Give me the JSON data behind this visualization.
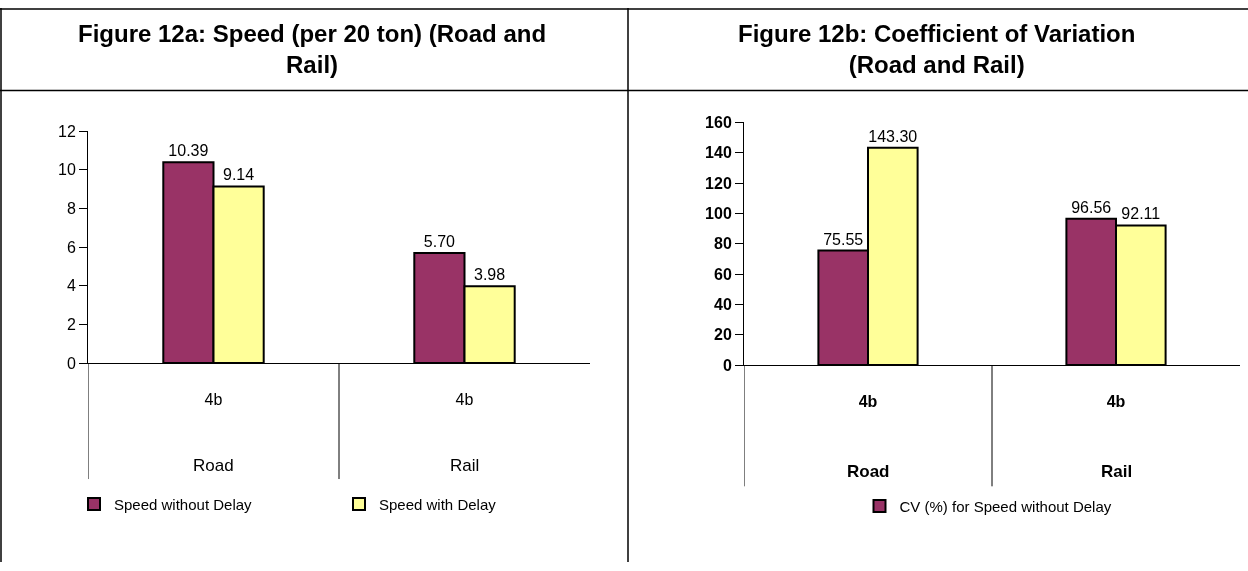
{
  "chart_data": [
    {
      "type": "bar",
      "title": "Figure 12a: Speed (per 20 ton) (Road and Rail)",
      "categories": [
        "4b",
        "4b"
      ],
      "series": [
        {
          "name": "Speed without Delay",
          "color": "#993366",
          "values": [
            10.39,
            5.7
          ],
          "value_labels": [
            "10.39",
            "5.70"
          ]
        },
        {
          "name": "Speed with Delay",
          "color": "#ffff99",
          "values": [
            9.14,
            3.98
          ],
          "value_labels": [
            "9.14",
            "3.98"
          ]
        }
      ],
      "annotations": [
        "Road",
        "Rail"
      ],
      "ylim": [
        0,
        12
      ],
      "yticks": [
        0,
        2,
        4,
        6,
        8,
        10,
        12
      ],
      "legend": "bottom"
    },
    {
      "type": "bar",
      "title": "Figure 12b: Coefficient of Variation (Road and Rail)",
      "categories": [
        "4b",
        "4b"
      ],
      "series": [
        {
          "name": "CV (%) for Speed without Delay",
          "color": "#993366",
          "values": [
            75.55,
            96.56
          ],
          "value_labels": [
            "75.55",
            "96.56"
          ]
        },
        {
          "color": "#ffff99",
          "values": [
            143.3,
            92.11
          ],
          "value_labels": [
            "143.30",
            "92.11"
          ]
        }
      ],
      "annotations": [
        "Road",
        "Rail"
      ],
      "ylim": [
        0,
        160
      ],
      "yticks": [
        0,
        20,
        40,
        60,
        80,
        100,
        120,
        140,
        160
      ],
      "legend": "bottom"
    }
  ]
}
